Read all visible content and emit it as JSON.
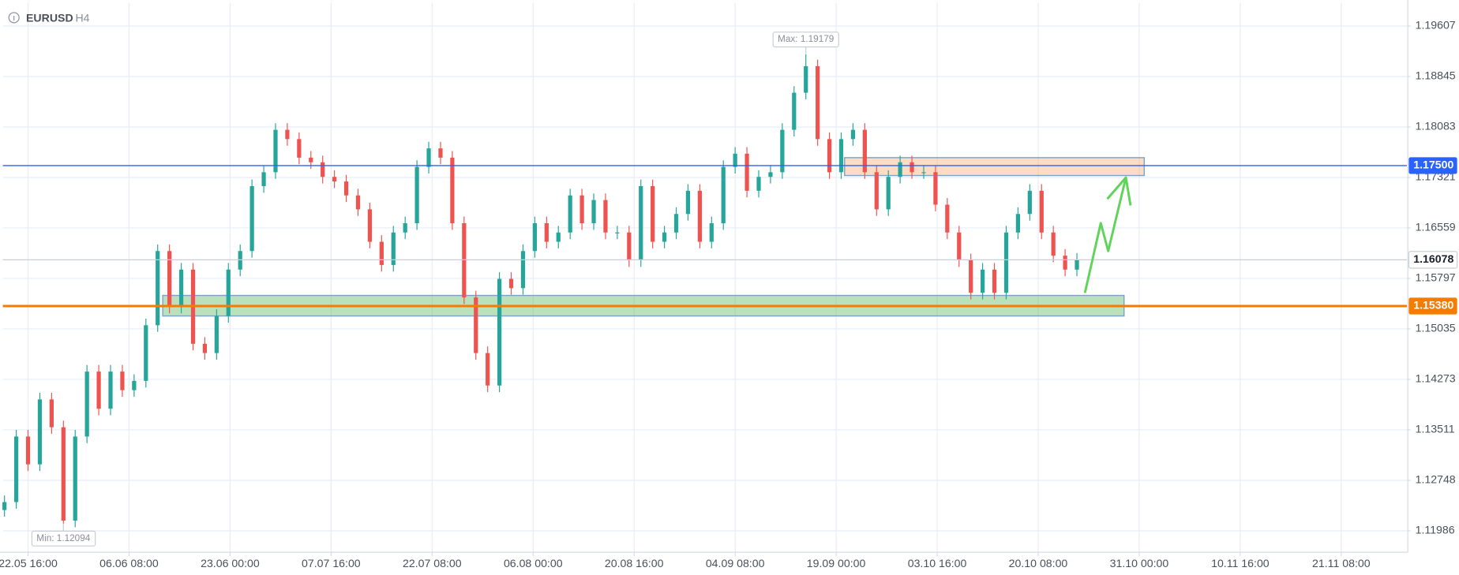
{
  "chart_data": {
    "type": "candlestick",
    "title": "EURUSD",
    "subtitle": "H4",
    "colors": {
      "up": "#26a69a",
      "down": "#ef5350"
    },
    "grid": true,
    "x": [
      -14,
      -7,
      0,
      7,
      14,
      21,
      28,
      35,
      42,
      49,
      56,
      63,
      70,
      77,
      84,
      91,
      98,
      105,
      112,
      119,
      126,
      133,
      140,
      147,
      154,
      161,
      168,
      175,
      182,
      189,
      196,
      203,
      210,
      217,
      224,
      231,
      238,
      245,
      252,
      259,
      266,
      273,
      280,
      287,
      294,
      301,
      308,
      315,
      322,
      329,
      336,
      343,
      350,
      357,
      364,
      371,
      378,
      385,
      392,
      399,
      406,
      413,
      420,
      427,
      434,
      441,
      448,
      455,
      462,
      469,
      476,
      483,
      490,
      497,
      504,
      511,
      518,
      525,
      532,
      539,
      546,
      553,
      560,
      567,
      574,
      581,
      588,
      595,
      602,
      609,
      616,
      623
    ],
    "open": [
      1.123,
      1.1242,
      1.1341,
      1.1299,
      1.1397,
      1.1355,
      1.1214,
      1.1341,
      1.1439,
      1.1383,
      1.1439,
      1.1411,
      1.1425,
      1.1509,
      1.1621,
      1.1537,
      1.1593,
      1.1481,
      1.1467,
      1.1523,
      1.1593,
      1.1621,
      1.1719,
      1.174,
      1.1804,
      1.179,
      1.1762,
      1.1755,
      1.1733,
      1.1726,
      1.1705,
      1.1684,
      1.1635,
      1.16,
      1.1649,
      1.1663,
      1.1748,
      1.1776,
      1.1762,
      1.1663,
      1.1551,
      1.1467,
      1.1418,
      1.1579,
      1.1565,
      1.1621,
      1.1663,
      1.1635,
      1.1649,
      1.1705,
      1.1663,
      1.1698,
      1.1649,
      1.1649,
      1.1607,
      1.1719,
      1.1635,
      1.1649,
      1.1677,
      1.1712,
      1.1635,
      1.1663,
      1.1748,
      1.1768,
      1.1712,
      1.1733,
      1.174,
      1.1804,
      1.186,
      1.19,
      1.179,
      1.174,
      1.179,
      1.1804,
      1.174,
      1.1684,
      1.1733,
      1.1755,
      1.174,
      1.174,
      1.1691,
      1.1649,
      1.1607,
      1.1558,
      1.1593,
      1.1558,
      1.1649,
      1.1677,
      1.1712,
      1.1649,
      1.1614,
      1.1593
    ],
    "high": [
      1.1252,
      1.1351,
      1.1351,
      1.1407,
      1.1407,
      1.1365,
      1.1351,
      1.1449,
      1.1449,
      1.1449,
      1.1449,
      1.1435,
      1.1519,
      1.1631,
      1.1631,
      1.1603,
      1.1603,
      1.1491,
      1.1533,
      1.1603,
      1.1631,
      1.1729,
      1.175,
      1.1814,
      1.1814,
      1.18,
      1.1772,
      1.1765,
      1.1743,
      1.1736,
      1.1715,
      1.1694,
      1.1645,
      1.1659,
      1.1673,
      1.1758,
      1.1786,
      1.1786,
      1.1772,
      1.1673,
      1.1561,
      1.1477,
      1.1589,
      1.1589,
      1.1631,
      1.1673,
      1.1673,
      1.1659,
      1.1715,
      1.1715,
      1.1708,
      1.1708,
      1.1659,
      1.1659,
      1.1729,
      1.1729,
      1.1659,
      1.1687,
      1.1722,
      1.1722,
      1.1673,
      1.1758,
      1.1778,
      1.1778,
      1.1743,
      1.175,
      1.1814,
      1.187,
      1.19179,
      1.191,
      1.18,
      1.18,
      1.1814,
      1.1814,
      1.175,
      1.1743,
      1.1765,
      1.1765,
      1.175,
      1.175,
      1.1701,
      1.1659,
      1.1617,
      1.1603,
      1.1603,
      1.1659,
      1.1687,
      1.1722,
      1.1722,
      1.1659,
      1.1624,
      1.1618
    ],
    "low": [
      1.122,
      1.1232,
      1.1289,
      1.1289,
      1.1345,
      1.12094,
      1.1204,
      1.1331,
      1.1373,
      1.1373,
      1.1401,
      1.1401,
      1.1415,
      1.1499,
      1.1527,
      1.1527,
      1.1471,
      1.1457,
      1.1457,
      1.1513,
      1.1583,
      1.1611,
      1.1709,
      1.173,
      1.178,
      1.1752,
      1.1745,
      1.1723,
      1.1716,
      1.1695,
      1.1674,
      1.1625,
      1.159,
      1.159,
      1.1639,
      1.1653,
      1.1738,
      1.1752,
      1.1653,
      1.1541,
      1.1457,
      1.1408,
      1.1408,
      1.1555,
      1.1555,
      1.1611,
      1.1625,
      1.1625,
      1.1639,
      1.1653,
      1.1653,
      1.1639,
      1.1639,
      1.1597,
      1.1597,
      1.1625,
      1.1625,
      1.1639,
      1.1667,
      1.1625,
      1.1625,
      1.1653,
      1.1738,
      1.1702,
      1.1702,
      1.1723,
      1.173,
      1.1794,
      1.185,
      1.178,
      1.173,
      1.173,
      1.178,
      1.173,
      1.1674,
      1.1674,
      1.1723,
      1.173,
      1.173,
      1.1681,
      1.1639,
      1.1597,
      1.1548,
      1.1548,
      1.1548,
      1.1548,
      1.1639,
      1.1667,
      1.1639,
      1.1604,
      1.1583,
      1.1583
    ],
    "close": [
      1.1242,
      1.1341,
      1.1299,
      1.1397,
      1.1355,
      1.1214,
      1.1341,
      1.1439,
      1.1383,
      1.1439,
      1.1411,
      1.1425,
      1.1509,
      1.1621,
      1.1537,
      1.1593,
      1.1481,
      1.1467,
      1.1523,
      1.1593,
      1.1621,
      1.1719,
      1.174,
      1.1804,
      1.179,
      1.1762,
      1.1755,
      1.1733,
      1.1726,
      1.1705,
      1.1684,
      1.1635,
      1.16,
      1.1649,
      1.1663,
      1.1748,
      1.1776,
      1.1762,
      1.1663,
      1.1551,
      1.1467,
      1.1418,
      1.1579,
      1.1565,
      1.1621,
      1.1663,
      1.1635,
      1.1649,
      1.1705,
      1.1663,
      1.1698,
      1.1649,
      1.1649,
      1.1607,
      1.1719,
      1.1635,
      1.1649,
      1.1677,
      1.1712,
      1.1635,
      1.1663,
      1.1748,
      1.1768,
      1.1712,
      1.1733,
      1.174,
      1.1804,
      1.186,
      1.19,
      1.179,
      1.174,
      1.179,
      1.1804,
      1.174,
      1.1684,
      1.1733,
      1.1755,
      1.174,
      1.174,
      1.1691,
      1.1649,
      1.1607,
      1.1558,
      1.1593,
      1.1558,
      1.1649,
      1.1677,
      1.1712,
      1.1649,
      1.1614,
      1.1593,
      1.1608
    ],
    "xlim": [
      -15,
      819
    ],
    "xticks": [
      {
        "value": 0,
        "label": "22.05 16:00"
      },
      {
        "value": 60,
        "label": "06.06 08:00"
      },
      {
        "value": 120,
        "label": "23.06 00:00"
      },
      {
        "value": 180,
        "label": "07.07 16:00"
      },
      {
        "value": 240,
        "label": "22.07 08:00"
      },
      {
        "value": 300,
        "label": "06.08 00:00"
      },
      {
        "value": 360,
        "label": "20.08 16:00"
      },
      {
        "value": 420,
        "label": "04.09 08:00"
      },
      {
        "value": 480,
        "label": "19.09 00:00"
      },
      {
        "value": 540,
        "label": "03.10 16:00"
      },
      {
        "value": 600,
        "label": "20.10 08:00"
      },
      {
        "value": 660,
        "label": "31.10 00:00"
      },
      {
        "value": 720,
        "label": "10.11 16:00"
      },
      {
        "value": 780,
        "label": "21.11 08:00"
      }
    ],
    "ylim": [
      1.11663,
      1.19958
    ],
    "yticks": [
      1.19607,
      1.18845,
      1.18083,
      1.17321,
      1.16559,
      1.15797,
      1.15035,
      1.14273,
      1.13511,
      1.12748,
      1.11986
    ],
    "hlines": [
      {
        "value": 1.175,
        "label": "1.17500",
        "color": "#2962ff"
      },
      {
        "value": 1.1538,
        "label": "1.15380",
        "color": "#f57c00"
      }
    ],
    "last_price": {
      "value": 1.16078,
      "label": "1.16078"
    },
    "zones": [
      {
        "x": [
          80,
          651
        ],
        "y": [
          1.1523,
          1.1554
        ],
        "color": "#4caf50"
      },
      {
        "x": [
          485,
          663
        ],
        "y": [
          1.1735,
          1.1762
        ],
        "color": "#f4a46a"
      }
    ],
    "max": {
      "x": 462,
      "value": 1.19179,
      "label": "Max: 1.19179"
    },
    "min": {
      "x": 21,
      "value": 1.12094,
      "label": "Min: 1.12094"
    }
  }
}
